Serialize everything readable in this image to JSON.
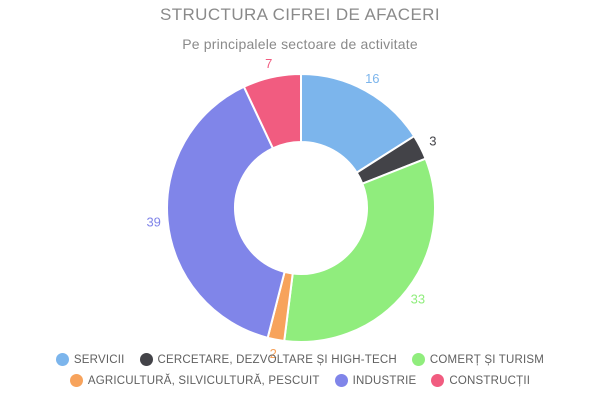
{
  "chart_data": {
    "type": "pie",
    "variant": "donut",
    "title": "STRUCTURA CIFREI DE AFACERI",
    "subtitle": "Pe principalele sectoare de activitate",
    "categories": [
      "SERVICII",
      "CERCETARE, DEZVOLTARE ȘI HIGH-TECH",
      "COMERȚ ȘI TURISM",
      "AGRICULTURĂ, SILVICULTURĂ, PESCUIT",
      "INDUSTRIE",
      "CONSTRUCȚII"
    ],
    "values": [
      16,
      3,
      33,
      2,
      39,
      7
    ],
    "colors": [
      "#7cb5ec",
      "#434348",
      "#90ed7d",
      "#f7a35c",
      "#8085e9",
      "#f15c80"
    ],
    "total": 100,
    "start_angle_deg": 0,
    "direction": "clockwise",
    "data_labels": "outside, value only, colored same as slice",
    "legend_position": "bottom",
    "legend_rows": [
      [
        0,
        1,
        2
      ],
      [
        3,
        4,
        5
      ]
    ],
    "background": "#ffffff"
  }
}
